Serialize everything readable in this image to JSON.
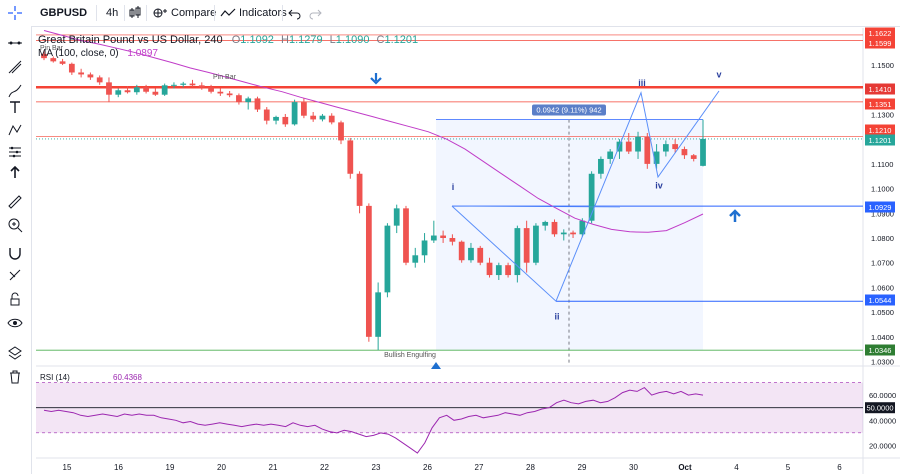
{
  "toolbar": {
    "symbol": "GBPUSD",
    "interval": "4h",
    "compare_label": "Compare",
    "indicators_label": "Indicators"
  },
  "legend": {
    "title": "Great Britain Pound vs US Dollar, 240",
    "open_label": "O",
    "open": "1.1092",
    "high_label": "H",
    "high": "1.1279",
    "low_label": "L",
    "low": "1.1090",
    "close_label": "C",
    "close": "1.1201",
    "ma_label": "MA (100, close, 0)",
    "ma_value": "1.0897"
  },
  "colors": {
    "up": "#26a69a",
    "down": "#ef5350",
    "ma": "#c03cc8",
    "rsi": "#9c27b0",
    "level_red": "#f44336",
    "blue_line": "#2962ff",
    "green_line": "#4caf50",
    "arrow": "#1e6fd0"
  },
  "icons": [
    "crosshair-icon",
    "trend-line-icon",
    "brush-icon",
    "pitchfork-icon",
    "text-icon",
    "pattern-icon",
    "measure-icon",
    "arrow-up-icon",
    "ruler-icon",
    "zoom-icon",
    "magnet-icon",
    "lock-drawings-icon",
    "lock-icon",
    "eye-icon",
    "layers-icon",
    "trash-icon"
  ],
  "chart_data": {
    "type": "candlestick",
    "title": "Great Britain Pound vs US Dollar, 240",
    "x_ticks": [
      "15",
      "16",
      "19",
      "20",
      "21",
      "22",
      "23",
      "26",
      "27",
      "28",
      "29",
      "30",
      "Oct",
      "4",
      "5",
      "6"
    ],
    "y_ticks": [
      "1.1500",
      "1.1400",
      "1.1300",
      "1.1200",
      "1.1100",
      "1.1000",
      "1.0900",
      "1.0800",
      "1.0700",
      "1.0600",
      "1.0500",
      "1.0400",
      "1.0300"
    ],
    "ylim": [
      1.029,
      1.165
    ],
    "candles": [
      [
        1.1545,
        1.156,
        1.152,
        1.1528
      ],
      [
        1.1528,
        1.1535,
        1.151,
        1.1515
      ],
      [
        1.1515,
        1.1525,
        1.15,
        1.1505
      ],
      [
        1.1505,
        1.151,
        1.146,
        1.147
      ],
      [
        1.147,
        1.1485,
        1.145,
        1.1462
      ],
      [
        1.1462,
        1.147,
        1.144,
        1.145
      ],
      [
        1.145,
        1.1458,
        1.142,
        1.143
      ],
      [
        1.143,
        1.145,
        1.135,
        1.138
      ],
      [
        1.138,
        1.1405,
        1.137,
        1.1398
      ],
      [
        1.1398,
        1.1415,
        1.1385,
        1.139
      ],
      [
        1.139,
        1.142,
        1.138,
        1.141
      ],
      [
        1.141,
        1.142,
        1.1385,
        1.1392
      ],
      [
        1.1392,
        1.1405,
        1.1375,
        1.138
      ],
      [
        1.138,
        1.1425,
        1.1375,
        1.1418
      ],
      [
        1.1418,
        1.143,
        1.1405,
        1.142
      ],
      [
        1.142,
        1.1432,
        1.141,
        1.1425
      ],
      [
        1.1425,
        1.144,
        1.1412,
        1.1418
      ],
      [
        1.1418,
        1.143,
        1.14,
        1.141
      ],
      [
        1.141,
        1.142,
        1.1385,
        1.1392
      ],
      [
        1.1392,
        1.1405,
        1.1375,
        1.1385
      ],
      [
        1.1385,
        1.1395,
        1.137,
        1.1378
      ],
      [
        1.1378,
        1.1385,
        1.134,
        1.135
      ],
      [
        1.135,
        1.1372,
        1.132,
        1.1365
      ],
      [
        1.1365,
        1.1372,
        1.131,
        1.132
      ],
      [
        1.132,
        1.133,
        1.126,
        1.1275
      ],
      [
        1.1275,
        1.1295,
        1.126,
        1.129
      ],
      [
        1.129,
        1.1302,
        1.125,
        1.126
      ],
      [
        1.126,
        1.136,
        1.1255,
        1.135
      ],
      [
        1.135,
        1.1365,
        1.1285,
        1.1295
      ],
      [
        1.1295,
        1.131,
        1.127,
        1.128
      ],
      [
        1.128,
        1.1302,
        1.1272,
        1.1295
      ],
      [
        1.1295,
        1.1305,
        1.126,
        1.1268
      ],
      [
        1.1268,
        1.1275,
        1.118,
        1.1195
      ],
      [
        1.1195,
        1.1205,
        1.104,
        1.106
      ],
      [
        1.106,
        1.107,
        1.09,
        1.093
      ],
      [
        1.093,
        1.094,
        1.038,
        1.04
      ],
      [
        1.04,
        1.062,
        1.0346,
        1.058
      ],
      [
        1.058,
        1.086,
        1.056,
        1.085
      ],
      [
        1.085,
        1.0935,
        1.082,
        1.092
      ],
      [
        1.092,
        1.093,
        1.069,
        1.07
      ],
      [
        1.07,
        1.076,
        1.068,
        1.073
      ],
      [
        1.073,
        1.082,
        1.07,
        1.079
      ],
      [
        1.079,
        1.087,
        1.078,
        1.081
      ],
      [
        1.081,
        1.083,
        1.078,
        1.08
      ],
      [
        1.08,
        1.0815,
        1.077,
        1.0785
      ],
      [
        1.0785,
        1.079,
        1.07,
        1.071
      ],
      [
        1.071,
        1.078,
        1.07,
        1.076
      ],
      [
        1.076,
        1.0768,
        1.069,
        1.07
      ],
      [
        1.07,
        1.072,
        1.064,
        1.065
      ],
      [
        1.065,
        1.07,
        1.063,
        1.069
      ],
      [
        1.069,
        1.07,
        1.064,
        1.065
      ],
      [
        1.065,
        1.085,
        1.062,
        1.084
      ],
      [
        1.084,
        1.087,
        1.066,
        1.07
      ],
      [
        1.07,
        1.086,
        1.069,
        1.085
      ],
      [
        1.085,
        1.087,
        1.083,
        1.0865
      ],
      [
        1.0865,
        1.0875,
        1.0805,
        1.0815
      ],
      [
        1.0815,
        1.0835,
        1.079,
        1.0822
      ],
      [
        1.0822,
        1.083,
        1.08,
        1.0815
      ],
      [
        1.0815,
        1.088,
        1.0805,
        1.087
      ],
      [
        1.087,
        1.107,
        1.086,
        1.106
      ],
      [
        1.106,
        1.113,
        1.104,
        1.112
      ],
      [
        1.112,
        1.116,
        1.11,
        1.115
      ],
      [
        1.115,
        1.12,
        1.112,
        1.119
      ],
      [
        1.119,
        1.1225,
        1.114,
        1.115
      ],
      [
        1.115,
        1.123,
        1.112,
        1.121
      ],
      [
        1.121,
        1.1225,
        1.108,
        1.11
      ],
      [
        1.11,
        1.118,
        1.108,
        1.115
      ],
      [
        1.115,
        1.1195,
        1.113,
        1.118
      ],
      [
        1.118,
        1.12,
        1.1145,
        1.116
      ],
      [
        1.116,
        1.117,
        1.112,
        1.1135
      ],
      [
        1.1135,
        1.114,
        1.111,
        1.112
      ],
      [
        1.1092,
        1.1279,
        1.109,
        1.1201
      ]
    ],
    "ma_series": [
      1.164,
      1.162,
      1.16,
      1.1585,
      1.1568,
      1.155,
      1.153,
      1.151,
      1.1488,
      1.147,
      1.145,
      1.143,
      1.141,
      1.1392,
      1.137,
      1.135,
      1.133,
      1.131,
      1.129,
      1.127,
      1.125,
      1.123,
      1.12,
      1.116,
      1.111,
      1.106,
      1.101,
      1.096,
      1.092,
      1.088,
      1.0855,
      1.0835,
      1.0825,
      1.0823,
      1.083,
      1.0862,
      1.0897
    ],
    "price_levels": [
      "1.1622",
      "1.1599",
      "1.1410",
      "1.1351",
      "1.1210",
      "1.1201",
      "1.0929",
      "1.0544",
      "1.0346"
    ],
    "current_price": "1.1201",
    "wave_labels": [
      "i",
      "ii",
      "iii",
      "iv",
      "v"
    ],
    "measure_label": "0.0942 (9.11%) 942",
    "annotations": [
      "Pin Bar",
      "Pin Bar",
      "Bullish Engulfing"
    ],
    "rsi": {
      "label": "RSI (14)",
      "value": "60.4368",
      "ticks": [
        "60.0000",
        "50.0000",
        "40.0000",
        "20.0000"
      ],
      "ylim": [
        10,
        80
      ],
      "values": [
        48,
        47,
        48,
        47,
        46,
        44,
        43,
        44,
        45,
        44,
        43,
        45,
        44,
        45,
        44,
        44,
        42,
        41,
        40,
        38,
        39,
        37,
        36,
        37,
        38,
        37,
        36,
        35,
        36,
        37,
        36,
        37,
        36,
        35,
        38,
        36,
        35,
        36,
        33,
        31,
        30,
        32,
        31,
        29,
        27,
        28,
        30,
        29,
        26,
        22,
        18,
        14,
        22,
        34,
        42,
        44,
        40,
        41,
        43,
        44,
        42,
        43,
        44,
        46,
        45,
        44,
        46,
        47,
        49,
        50,
        54,
        56,
        54,
        53,
        55,
        56,
        54,
        55,
        58,
        62,
        64,
        63,
        66,
        60,
        62,
        63,
        61,
        63,
        60,
        61,
        60
      ]
    }
  }
}
